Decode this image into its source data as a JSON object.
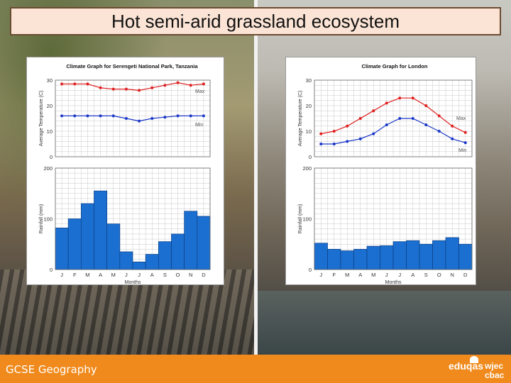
{
  "slide": {
    "title": "Hot semi-arid grassland ecosystem",
    "footer": "GCSE Geography",
    "logos": {
      "eduqas": "eduqas",
      "wjec": "wjec",
      "cbac": "cbac"
    }
  },
  "colors": {
    "max_line": "#e02020",
    "min_line": "#1a38c8",
    "bar_fill": "#1b6fd0",
    "footer": "#f08a1c"
  },
  "chart_data": [
    {
      "type": "line",
      "title": "Climate Graph for Serengeti National Park, Tanzania",
      "xlabel": "",
      "ylabel": "Average Temperature (C)",
      "ylim": [
        0,
        30
      ],
      "yticks": [
        "30",
        "20",
        "10",
        "0"
      ],
      "categories": [
        "J",
        "F",
        "M",
        "A",
        "M",
        "J",
        "J",
        "A",
        "S",
        "O",
        "N",
        "D"
      ],
      "series": [
        {
          "name": "Max",
          "values": [
            28.5,
            28.5,
            28.5,
            27,
            26.5,
            26.5,
            26,
            27,
            28,
            29,
            28,
            28.5
          ]
        },
        {
          "name": "Min",
          "values": [
            16,
            16,
            16,
            16,
            16,
            15,
            14,
            15,
            15.5,
            16,
            16,
            16
          ]
        }
      ]
    },
    {
      "type": "bar",
      "title": "",
      "xlabel": "Months",
      "ylabel": "Rainfall (mm)",
      "ylim": [
        0,
        200
      ],
      "yticks": [
        "200",
        "100",
        "0"
      ],
      "categories": [
        "J",
        "F",
        "M",
        "A",
        "M",
        "J",
        "J",
        "A",
        "S",
        "O",
        "N",
        "D"
      ],
      "values": [
        82,
        100,
        130,
        155,
        90,
        35,
        15,
        30,
        55,
        70,
        115,
        105
      ]
    },
    {
      "type": "line",
      "title": "Climate Graph for London",
      "xlabel": "",
      "ylabel": "Average Temperature (C)",
      "ylim": [
        0,
        30
      ],
      "yticks": [
        "30",
        "20",
        "10",
        "0"
      ],
      "categories": [
        "J",
        "F",
        "M",
        "A",
        "M",
        "J",
        "J",
        "A",
        "S",
        "O",
        "N",
        "D"
      ],
      "series": [
        {
          "name": "Max",
          "values": [
            9,
            10,
            12,
            15,
            18,
            21,
            23,
            23,
            20,
            16,
            12,
            9.5
          ]
        },
        {
          "name": "Min",
          "values": [
            5,
            5,
            6,
            7,
            9,
            12.5,
            15,
            15,
            12.5,
            10,
            7,
            5.5
          ]
        }
      ]
    },
    {
      "type": "bar",
      "title": "",
      "xlabel": "Months",
      "ylabel": "Rainfall (mm)",
      "ylim": [
        0,
        200
      ],
      "yticks": [
        "200",
        "100",
        "0"
      ],
      "categories": [
        "J",
        "F",
        "M",
        "A",
        "M",
        "J",
        "J",
        "A",
        "S",
        "O",
        "N",
        "D"
      ],
      "values": [
        52,
        40,
        37,
        40,
        46,
        47,
        55,
        57,
        50,
        57,
        63,
        50
      ]
    }
  ]
}
